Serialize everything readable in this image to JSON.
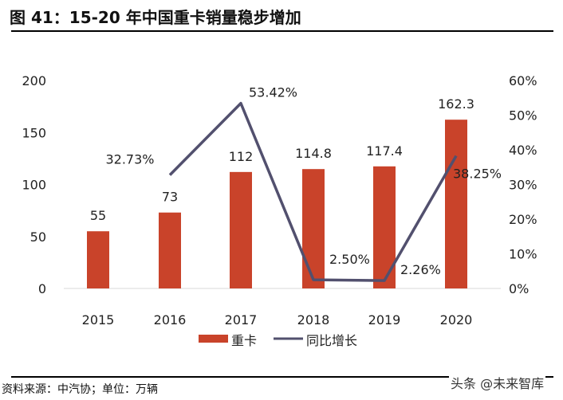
{
  "title": "图 41：15-20 年中国重卡销量稳步增加",
  "source": "资料来源：中汽协；单位：万辆",
  "watermark": "头条 @未来智库",
  "colors": {
    "bar": "#c9432a",
    "line": "#52506e"
  },
  "chart_data": {
    "type": "bar+line",
    "categories": [
      "2015",
      "2016",
      "2017",
      "2018",
      "2019",
      "2020"
    ],
    "series": [
      {
        "name": "重卡",
        "type": "bar",
        "axis": "left",
        "values": [
          55,
          73,
          112,
          114.8,
          117.4,
          162.3
        ],
        "labels": [
          "55",
          "73",
          "112",
          "114.8",
          "117.4",
          "162.3"
        ]
      },
      {
        "name": "同比增长",
        "type": "line",
        "axis": "right",
        "values": [
          null,
          32.73,
          53.42,
          2.5,
          2.26,
          38.25
        ],
        "labels": [
          "",
          "32.73%",
          "53.42%",
          "2.50%",
          "2.26%",
          "38.25%"
        ]
      }
    ],
    "ylim_left": [
      0,
      200
    ],
    "yticks_left": [
      "0",
      "50",
      "100",
      "150",
      "200"
    ],
    "ylim_right": [
      0,
      60
    ],
    "yticks_right": [
      "0%",
      "10%",
      "20%",
      "30%",
      "40%",
      "50%",
      "60%"
    ],
    "grid": false,
    "legend": "bottom"
  }
}
